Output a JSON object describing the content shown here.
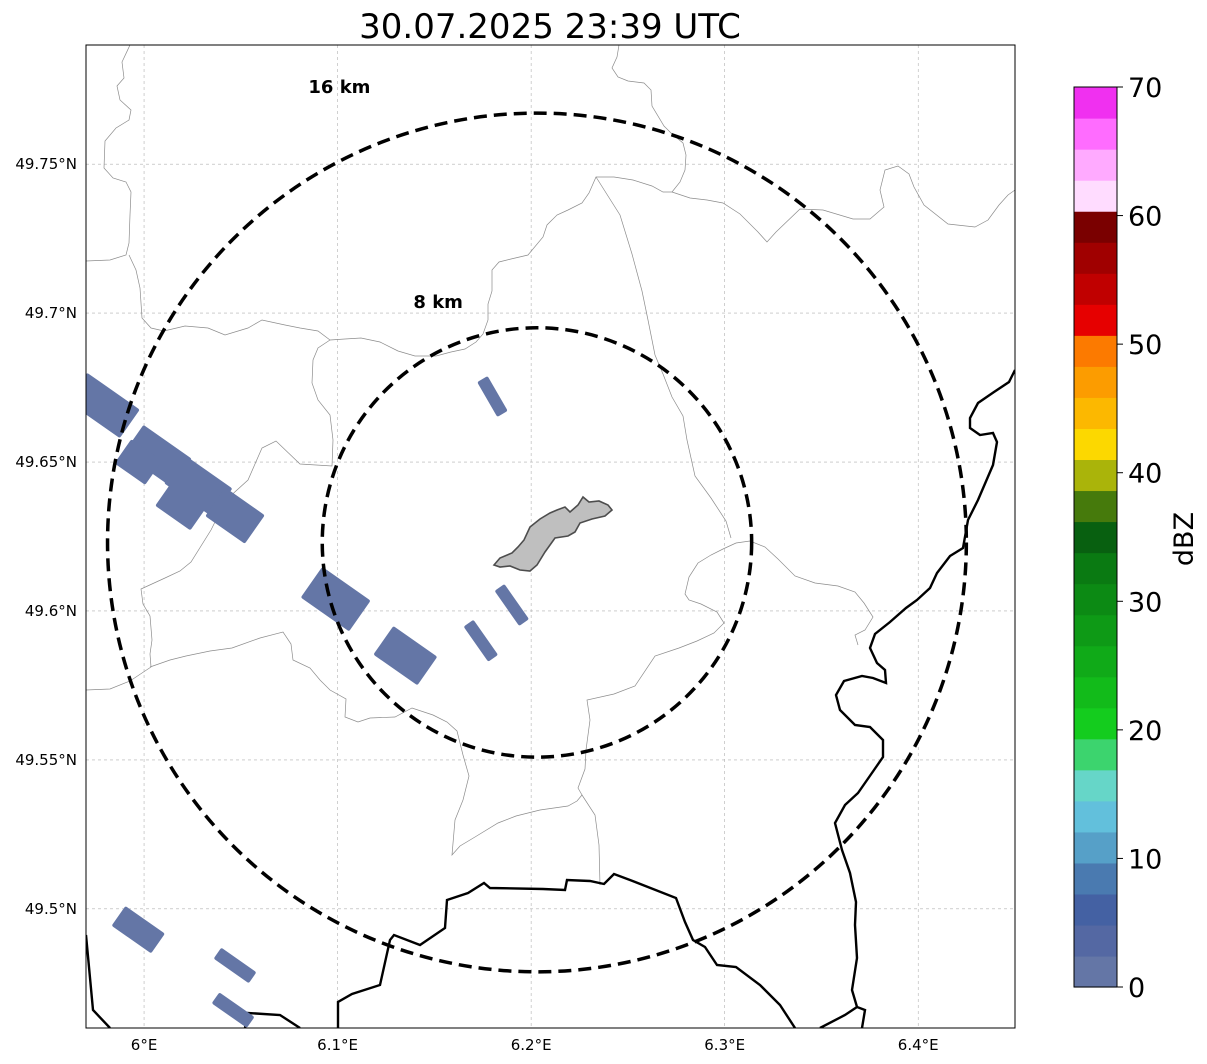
{
  "title": "30.07.2025 23:39 UTC",
  "map": {
    "lon_range": [
      5.97,
      6.45
    ],
    "lat_range": [
      49.46,
      49.79
    ],
    "center": {
      "lon": 6.203,
      "lat": 49.623
    },
    "x_ticks": [
      {
        "value": 6.0,
        "label": "6°E"
      },
      {
        "value": 6.1,
        "label": "6.1°E"
      },
      {
        "value": 6.2,
        "label": "6.2°E"
      },
      {
        "value": 6.3,
        "label": "6.3°E"
      },
      {
        "value": 6.4,
        "label": "6.4°E"
      }
    ],
    "y_ticks": [
      {
        "value": 49.5,
        "label": "49.5°N"
      },
      {
        "value": 49.55,
        "label": "49.55°N"
      },
      {
        "value": 49.6,
        "label": "49.6°N"
      },
      {
        "value": 49.65,
        "label": "49.65°N"
      },
      {
        "value": 49.7,
        "label": "49.7°N"
      },
      {
        "value": 49.75,
        "label": "49.75°N"
      }
    ],
    "grid": true,
    "range_rings": [
      {
        "radius_km": 8,
        "label": "8 km"
      },
      {
        "radius_km": 16,
        "label": "16 km"
      }
    ],
    "echo_color": "#6476a6",
    "city_fill": "#bfbfbf",
    "echoes": [
      {
        "lon": 5.979,
        "lat": 49.669,
        "len_km": 2.4,
        "wid_km": 1.3,
        "angle": 35
      },
      {
        "lon": 6.007,
        "lat": 49.652,
        "len_km": 2.2,
        "wid_km": 1.3,
        "angle": 35
      },
      {
        "lon": 6.028,
        "lat": 49.642,
        "len_km": 2.2,
        "wid_km": 1.3,
        "angle": 35
      },
      {
        "lon": 5.997,
        "lat": 49.65,
        "len_km": 1.4,
        "wid_km": 1.1,
        "angle": 35
      },
      {
        "lon": 6.02,
        "lat": 49.636,
        "len_km": 1.6,
        "wid_km": 1.3,
        "angle": 35
      },
      {
        "lon": 6.047,
        "lat": 49.632,
        "len_km": 1.8,
        "wid_km": 1.3,
        "angle": 35
      },
      {
        "lon": 6.099,
        "lat": 49.604,
        "len_km": 2.2,
        "wid_km": 1.4,
        "angle": 35
      },
      {
        "lon": 6.135,
        "lat": 49.585,
        "len_km": 2.0,
        "wid_km": 1.3,
        "angle": 35
      },
      {
        "lon": 6.18,
        "lat": 49.672,
        "len_km": 1.5,
        "wid_km": 0.45,
        "angle": 60
      },
      {
        "lon": 6.19,
        "lat": 49.602,
        "len_km": 1.6,
        "wid_km": 0.45,
        "angle": 55
      },
      {
        "lon": 6.174,
        "lat": 49.59,
        "len_km": 1.6,
        "wid_km": 0.45,
        "angle": 55
      },
      {
        "lon": 5.997,
        "lat": 49.493,
        "len_km": 1.8,
        "wid_km": 0.9,
        "angle": 35
      },
      {
        "lon": 6.047,
        "lat": 49.481,
        "len_km": 1.6,
        "wid_km": 0.5,
        "angle": 35
      },
      {
        "lon": 6.046,
        "lat": 49.466,
        "len_km": 1.6,
        "wid_km": 0.5,
        "angle": 35
      }
    ]
  },
  "colorbar": {
    "label": "dBZ",
    "min": 0,
    "max": 70,
    "ticks": [
      "0",
      "10",
      "20",
      "30",
      "40",
      "50",
      "60",
      "70"
    ],
    "colors": [
      "#6476a6",
      "#5468a3",
      "#4461a3",
      "#4a7ab0",
      "#56a0c8",
      "#62c0dc",
      "#66d6c8",
      "#3cd46e",
      "#14cc1e",
      "#12bb1a",
      "#10aa18",
      "#0e9a16",
      "#0c8a14",
      "#0a7a12",
      "#086010",
      "#467a0c",
      "#aab40a",
      "#fcd800",
      "#fcb800",
      "#fc9c00",
      "#fc7a00",
      "#e60000",
      "#c00000",
      "#a00000",
      "#7a0000",
      "#ffdcff",
      "#ffaaff",
      "#ff6cff",
      "#f030f0"
    ]
  }
}
